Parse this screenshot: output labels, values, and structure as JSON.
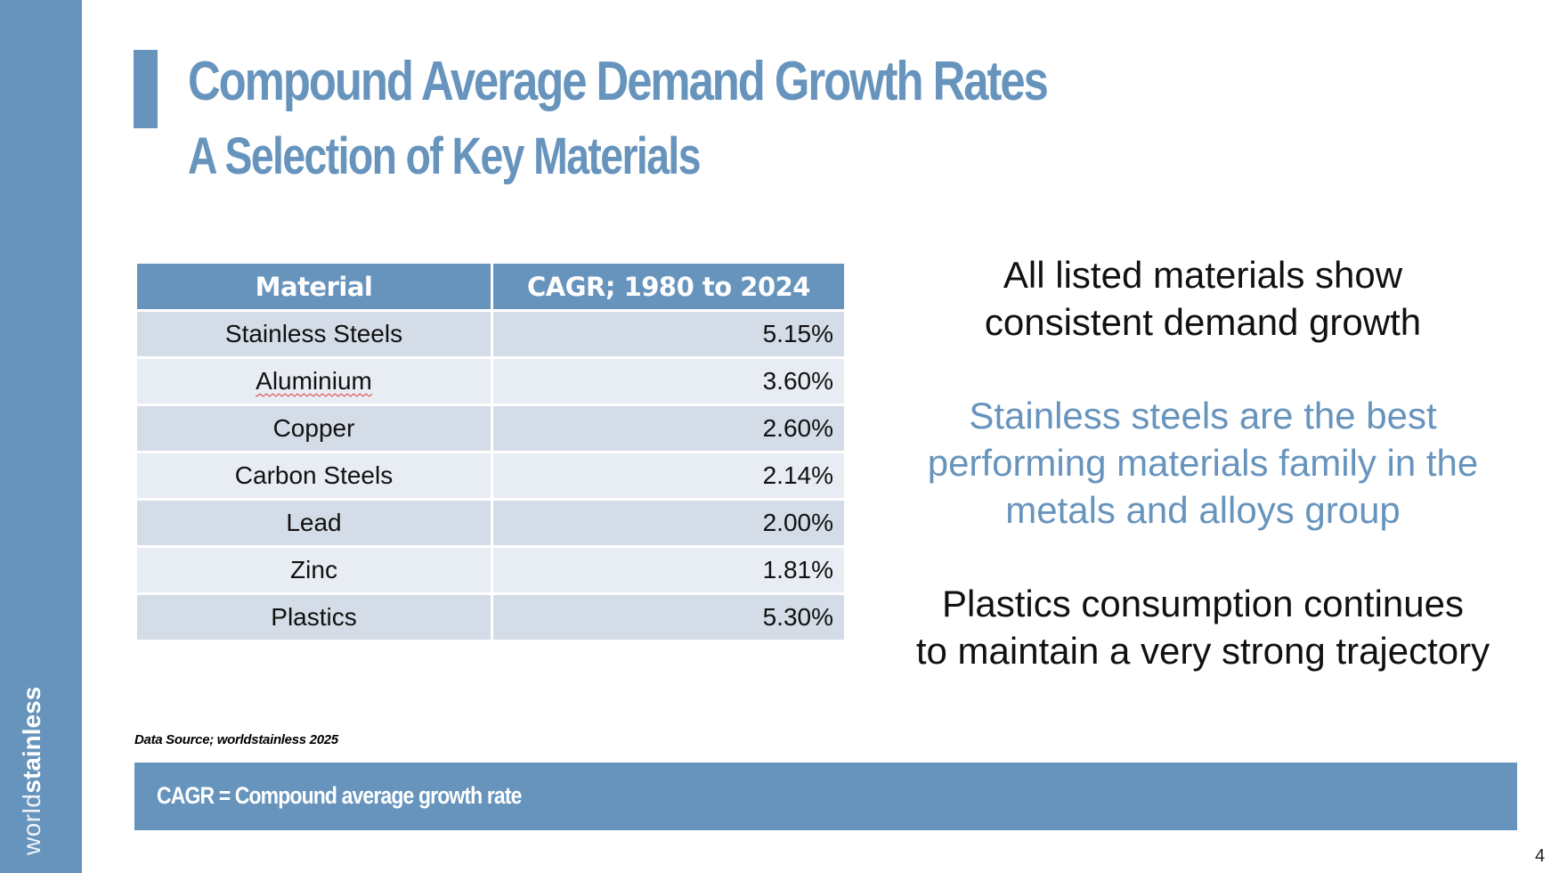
{
  "sidebar": {
    "logo_light": "world",
    "logo_bold": "stainless"
  },
  "header": {
    "title": "Compound Average Demand Growth Rates",
    "subtitle": "A Selection of Key Materials"
  },
  "table": {
    "headers": [
      "Material",
      "CAGR; 1980 to 2024"
    ],
    "rows": [
      {
        "material": "Stainless Steels",
        "cagr": "5.15%"
      },
      {
        "material": "Aluminium",
        "cagr": "3.60%"
      },
      {
        "material": "Copper",
        "cagr": "2.60%"
      },
      {
        "material": "Carbon Steels",
        "cagr": "2.14%"
      },
      {
        "material": "Lead",
        "cagr": "2.00%"
      },
      {
        "material": "Zinc",
        "cagr": "1.81%"
      },
      {
        "material": "Plastics",
        "cagr": "5.30%"
      }
    ]
  },
  "notes": {
    "note1": [
      "All listed materials show",
      "consistent demand growth"
    ],
    "note2": [
      "Stainless steels are the best",
      "performing materials family in the",
      "metals and alloys group"
    ],
    "note3": [
      "Plastics consumption continues",
      "to maintain a very strong trajectory"
    ]
  },
  "source": "Data Source; worldstainless 2025",
  "footer": {
    "definition": "CAGR = Compound average growth rate"
  },
  "page_number": "4",
  "colors": {
    "brand_blue": "#6794bd",
    "row_dark": "#d4dce7",
    "row_light": "#e8ecf3"
  }
}
